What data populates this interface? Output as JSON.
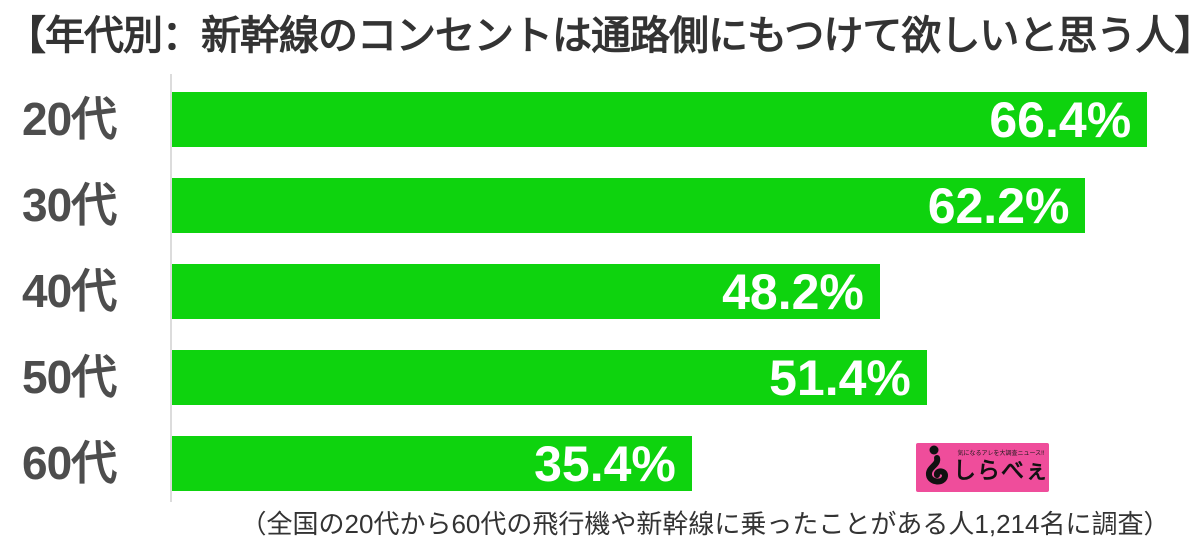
{
  "title": "【年代別：新幹線のコンセントは通路側にもつけて欲しいと思う人】",
  "chart_data": {
    "type": "bar",
    "orientation": "horizontal",
    "title": "年代別：新幹線のコンセントは通路側にもつけて欲しいと思う人",
    "categories": [
      "20代",
      "30代",
      "40代",
      "50代",
      "60代"
    ],
    "values": [
      66.4,
      62.2,
      48.2,
      51.4,
      35.4
    ],
    "value_labels": [
      "66.4%",
      "62.2%",
      "48.2%",
      "51.4%",
      "35.4%"
    ],
    "xlabel": "",
    "ylabel": "",
    "xlim": [
      0,
      70
    ],
    "grid": false,
    "legend": false,
    "bar_color": "#0ed30e",
    "value_label_color": "#ffffff",
    "category_label_color": "#4d4d4d"
  },
  "caption": "（全国の20代から60代の飛行機や新幹線に乗ったことがある人1,214名に調査）",
  "logo": {
    "brand": "しらべぇ",
    "tagline": "気になるアレを大調査ニュース!!",
    "bg_color": "#ef4d9b",
    "text_color": "#111111"
  },
  "colors": {
    "background": "#ffffff",
    "title_text": "#333333",
    "axis_line": "#dcdcdc"
  }
}
